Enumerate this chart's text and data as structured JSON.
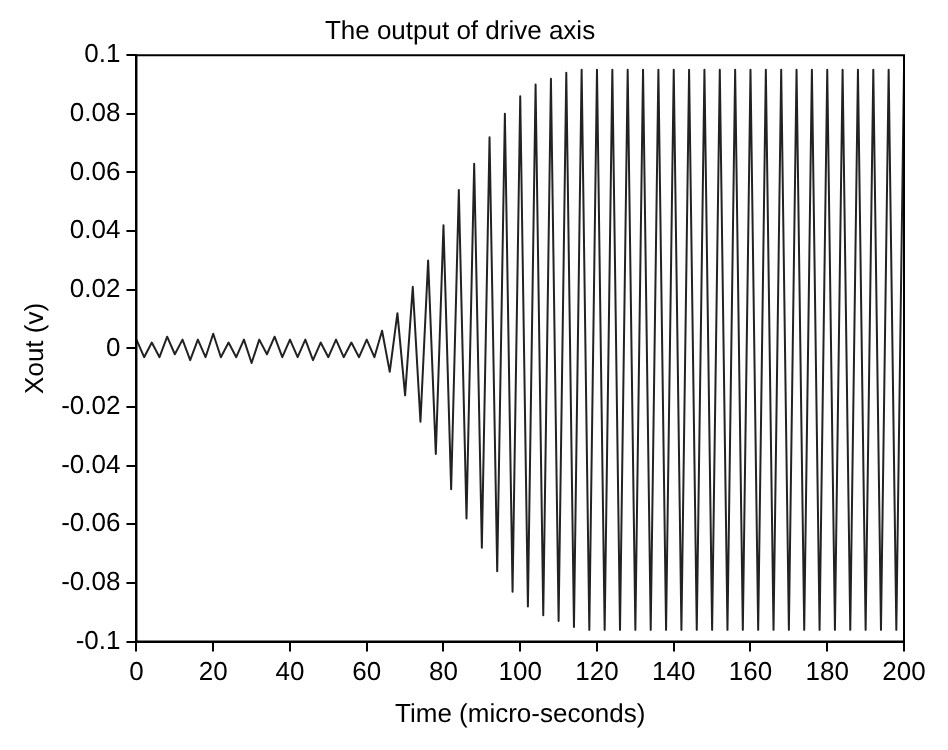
{
  "chart_data": {
    "type": "line",
    "title": "The output of drive axis",
    "xlabel": "Time (micro-seconds)",
    "ylabel": "Xout (v)",
    "x": [
      0,
      2,
      4,
      6,
      8,
      10,
      12,
      14,
      16,
      18,
      20,
      22,
      24,
      26,
      28,
      30,
      32,
      34,
      36,
      38,
      40,
      42,
      44,
      46,
      48,
      50,
      52,
      54,
      56,
      58,
      60,
      62,
      64,
      66,
      68,
      70,
      72,
      74,
      76,
      78,
      80,
      82,
      84,
      86,
      88,
      90,
      92,
      94,
      96,
      98,
      100,
      102,
      104,
      106,
      108,
      110,
      112,
      114,
      116,
      118,
      120,
      122,
      124,
      126,
      128,
      130,
      132,
      134,
      136,
      138,
      140,
      142,
      144,
      146,
      148,
      150,
      152,
      154,
      156,
      158,
      160,
      162,
      164,
      166,
      168,
      170,
      172,
      174,
      176,
      178,
      180,
      182,
      184,
      186,
      188,
      190,
      192,
      194,
      196,
      198,
      200
    ],
    "series": [
      {
        "color": "#222222",
        "values": [
          0.003,
          -0.003,
          0.002,
          -0.003,
          0.004,
          -0.002,
          0.003,
          -0.004,
          0.003,
          -0.003,
          0.005,
          -0.003,
          0.002,
          -0.003,
          0.003,
          -0.005,
          0.003,
          -0.002,
          0.004,
          -0.003,
          0.003,
          -0.003,
          0.003,
          -0.004,
          0.002,
          -0.003,
          0.003,
          -0.003,
          0.002,
          -0.003,
          0.003,
          -0.003,
          0.006,
          -0.008,
          0.012,
          -0.016,
          0.021,
          -0.025,
          0.03,
          -0.036,
          0.042,
          -0.048,
          0.054,
          -0.058,
          0.063,
          -0.068,
          0.072,
          -0.076,
          0.08,
          -0.083,
          0.086,
          -0.088,
          0.09,
          -0.091,
          0.092,
          -0.093,
          0.094,
          -0.095,
          0.095,
          -0.096,
          0.095,
          -0.096,
          0.095,
          -0.096,
          0.095,
          -0.096,
          0.095,
          -0.096,
          0.095,
          -0.096,
          0.095,
          -0.096,
          0.095,
          -0.096,
          0.095,
          -0.096,
          0.095,
          -0.096,
          0.095,
          -0.096,
          0.095,
          -0.096,
          0.095,
          -0.096,
          0.095,
          -0.096,
          0.095,
          -0.096,
          0.095,
          -0.096,
          0.095,
          -0.096,
          0.095,
          -0.096,
          0.095,
          -0.096,
          0.095,
          -0.096,
          0.095,
          -0.096,
          0.095
        ]
      }
    ],
    "xlim": [
      0,
      200
    ],
    "xticks": [
      0,
      20,
      40,
      60,
      80,
      100,
      120,
      140,
      160,
      180,
      200
    ],
    "ylim": [
      -0.1,
      0.1
    ],
    "yticks": [
      -0.1,
      -0.08,
      -0.06,
      -0.04,
      -0.02,
      0,
      0.02,
      0.04,
      0.06,
      0.08,
      0.1
    ],
    "grid": false,
    "legend": false,
    "marker": "none",
    "line_style": "solid"
  }
}
